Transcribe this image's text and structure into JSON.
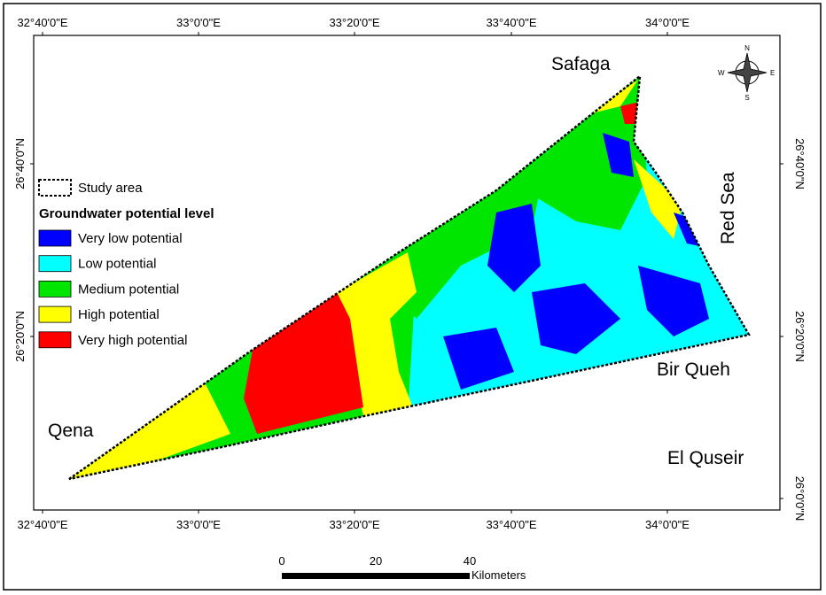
{
  "frame": {
    "top_ticks": [
      "32°40'0\"E",
      "33°0'0\"E",
      "33°20'0\"E",
      "33°40'0\"E",
      "34°0'0\"E"
    ],
    "bottom_ticks": [
      "32°40'0\"E",
      "33°0'0\"E",
      "33°20'0\"E",
      "33°40'0\"E",
      "34°0'0\"E"
    ],
    "left_ticks": [
      "26°40'0\"N",
      "26°20'0\"N"
    ],
    "right_ticks": [
      "26°40'0\"N",
      "26°20'0\"N",
      "26°0'0\"N"
    ]
  },
  "legend": {
    "study_area": "Study area",
    "title": "Groundwater potential level",
    "classes": [
      {
        "label": "Very low potential",
        "color": "#0000ff"
      },
      {
        "label": "Low potential",
        "color": "#00ffff"
      },
      {
        "label": "Medium potential",
        "color": "#00e600"
      },
      {
        "label": "High potential",
        "color": "#ffff00"
      },
      {
        "label": "Very high potential",
        "color": "#ff0000"
      }
    ]
  },
  "places": [
    "Safaga",
    "Red Sea",
    "Bir Queh",
    "El Quseir",
    "Qena"
  ],
  "north_arrow": {
    "n": "N",
    "e": "E",
    "s": "S",
    "w": "W"
  },
  "scale_bar": {
    "ticks": [
      0,
      20,
      40
    ],
    "unit": "Kilometers"
  }
}
